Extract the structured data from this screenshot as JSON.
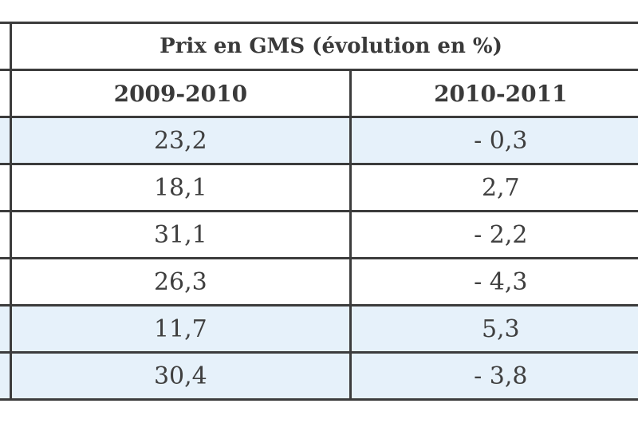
{
  "table": {
    "title": "Prix en GMS (évolution en %)",
    "columns": [
      "2009-2010",
      "2010-2011"
    ],
    "rows": [
      {
        "values": [
          "23,2",
          "- 0,3"
        ],
        "tinted": true
      },
      {
        "values": [
          "18,1",
          "2,7"
        ],
        "tinted": false
      },
      {
        "values": [
          "31,1",
          "- 2,2"
        ],
        "tinted": false
      },
      {
        "values": [
          "26,3",
          "- 4,3"
        ],
        "tinted": false
      },
      {
        "values": [
          "11,7",
          "5,3"
        ],
        "tinted": true
      },
      {
        "values": [
          "30,4",
          "- 3,8"
        ],
        "tinted": true
      }
    ],
    "colors": {
      "border": "#3c3c3c",
      "row_tint": "#e6f1fa",
      "text": "#3a3a3a"
    }
  }
}
